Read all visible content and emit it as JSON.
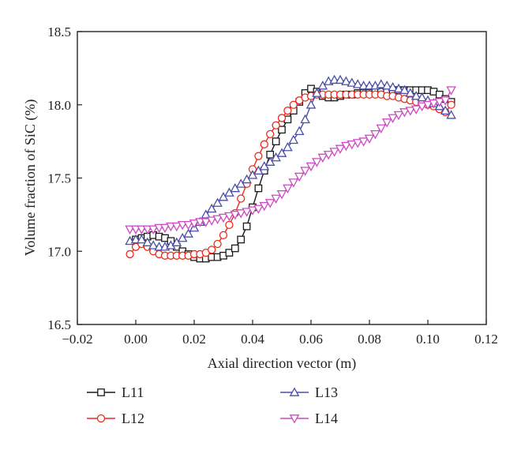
{
  "chart_data": {
    "type": "line",
    "title": "",
    "xlabel": "Axial direction vector (m)",
    "ylabel": "Volume fraction of SiC (%)",
    "xlim": [
      -0.02,
      0.12
    ],
    "ylim": [
      16.5,
      18.5
    ],
    "xticks": [
      "−0.02",
      "0.00",
      "0.02",
      "0.04",
      "0.06",
      "0.08",
      "0.10",
      "0.12"
    ],
    "yticks": [
      "16.5",
      "17.0",
      "17.5",
      "18.0",
      "18.5"
    ],
    "grid": false,
    "legend_position": "bottom",
    "series": [
      {
        "name": "L11",
        "color": "#1a1a1a",
        "marker": "square",
        "x": [
          0.0,
          0.002,
          0.004,
          0.006,
          0.008,
          0.01,
          0.012,
          0.014,
          0.016,
          0.018,
          0.02,
          0.022,
          0.024,
          0.026,
          0.028,
          0.03,
          0.032,
          0.034,
          0.036,
          0.038,
          0.04,
          0.042,
          0.044,
          0.046,
          0.048,
          0.05,
          0.052,
          0.054,
          0.056,
          0.058,
          0.06,
          0.062,
          0.064,
          0.066,
          0.068,
          0.07,
          0.072,
          0.074,
          0.076,
          0.078,
          0.08,
          0.082,
          0.084,
          0.086,
          0.088,
          0.09,
          0.092,
          0.094,
          0.096,
          0.098,
          0.1,
          0.102,
          0.104,
          0.106,
          0.108
        ],
        "values": [
          17.08,
          17.09,
          17.1,
          17.11,
          17.1,
          17.09,
          17.07,
          17.03,
          17.0,
          16.98,
          16.96,
          16.95,
          16.95,
          16.96,
          16.96,
          16.97,
          16.99,
          17.02,
          17.08,
          17.17,
          17.3,
          17.43,
          17.55,
          17.66,
          17.75,
          17.83,
          17.9,
          17.96,
          18.02,
          18.08,
          18.11,
          18.09,
          18.06,
          18.05,
          18.05,
          18.06,
          18.07,
          18.07,
          18.08,
          18.08,
          18.08,
          18.09,
          18.09,
          18.09,
          18.1,
          18.1,
          18.1,
          18.1,
          18.1,
          18.1,
          18.1,
          18.09,
          18.07,
          18.04,
          18.02
        ]
      },
      {
        "name": "L12",
        "color": "#ee2a1c",
        "marker": "circle",
        "x": [
          -0.002,
          0.0,
          0.002,
          0.004,
          0.006,
          0.008,
          0.01,
          0.012,
          0.014,
          0.016,
          0.018,
          0.02,
          0.022,
          0.024,
          0.026,
          0.028,
          0.03,
          0.032,
          0.034,
          0.036,
          0.038,
          0.04,
          0.042,
          0.044,
          0.046,
          0.048,
          0.05,
          0.052,
          0.054,
          0.056,
          0.058,
          0.06,
          0.062,
          0.064,
          0.066,
          0.068,
          0.07,
          0.072,
          0.074,
          0.076,
          0.078,
          0.08,
          0.082,
          0.084,
          0.086,
          0.088,
          0.09,
          0.092,
          0.094,
          0.096,
          0.098,
          0.1,
          0.102,
          0.104,
          0.106,
          0.108
        ],
        "values": [
          16.98,
          17.03,
          17.05,
          17.03,
          17.0,
          16.98,
          16.97,
          16.97,
          16.97,
          16.97,
          16.97,
          16.98,
          16.98,
          16.99,
          17.01,
          17.05,
          17.11,
          17.18,
          17.26,
          17.36,
          17.46,
          17.56,
          17.65,
          17.73,
          17.8,
          17.86,
          17.91,
          17.96,
          18.0,
          18.03,
          18.05,
          18.06,
          18.07,
          18.07,
          18.07,
          18.07,
          18.07,
          18.07,
          18.07,
          18.07,
          18.07,
          18.07,
          18.07,
          18.07,
          18.06,
          18.06,
          18.05,
          18.04,
          18.03,
          18.02,
          18.01,
          18.0,
          17.99,
          17.97,
          17.95,
          18.0
        ]
      },
      {
        "name": "L13",
        "color": "#4a4ea8",
        "marker": "triangle-up",
        "x": [
          -0.002,
          0.0,
          0.002,
          0.004,
          0.006,
          0.008,
          0.01,
          0.012,
          0.014,
          0.016,
          0.018,
          0.02,
          0.022,
          0.024,
          0.026,
          0.028,
          0.03,
          0.032,
          0.034,
          0.036,
          0.038,
          0.04,
          0.042,
          0.044,
          0.046,
          0.048,
          0.05,
          0.052,
          0.054,
          0.056,
          0.058,
          0.06,
          0.062,
          0.064,
          0.066,
          0.068,
          0.07,
          0.072,
          0.074,
          0.076,
          0.078,
          0.08,
          0.082,
          0.084,
          0.086,
          0.088,
          0.09,
          0.092,
          0.094,
          0.096,
          0.098,
          0.1,
          0.102,
          0.104,
          0.106,
          0.108
        ],
        "values": [
          17.07,
          17.08,
          17.08,
          17.06,
          17.04,
          17.03,
          17.03,
          17.04,
          17.06,
          17.09,
          17.12,
          17.16,
          17.2,
          17.25,
          17.29,
          17.33,
          17.37,
          17.4,
          17.43,
          17.46,
          17.49,
          17.52,
          17.55,
          17.58,
          17.61,
          17.64,
          17.67,
          17.71,
          17.76,
          17.82,
          17.9,
          18.0,
          18.08,
          18.13,
          18.16,
          18.17,
          18.17,
          18.16,
          18.15,
          18.14,
          18.13,
          18.13,
          18.13,
          18.14,
          18.13,
          18.12,
          18.11,
          18.1,
          18.08,
          18.06,
          18.05,
          18.03,
          18.01,
          17.99,
          17.96,
          17.93
        ]
      },
      {
        "name": "L14",
        "color": "#cc4bc2",
        "marker": "triangle-down",
        "x": [
          -0.002,
          0.0,
          0.002,
          0.004,
          0.006,
          0.008,
          0.01,
          0.012,
          0.014,
          0.016,
          0.018,
          0.02,
          0.022,
          0.024,
          0.026,
          0.028,
          0.03,
          0.032,
          0.034,
          0.036,
          0.038,
          0.04,
          0.042,
          0.044,
          0.046,
          0.048,
          0.05,
          0.052,
          0.054,
          0.056,
          0.058,
          0.06,
          0.062,
          0.064,
          0.066,
          0.068,
          0.07,
          0.072,
          0.074,
          0.076,
          0.078,
          0.08,
          0.082,
          0.084,
          0.086,
          0.088,
          0.09,
          0.092,
          0.094,
          0.096,
          0.098,
          0.1,
          0.102,
          0.104,
          0.106,
          0.108
        ],
        "values": [
          17.15,
          17.15,
          17.15,
          17.15,
          17.15,
          17.16,
          17.16,
          17.17,
          17.17,
          17.18,
          17.18,
          17.19,
          17.2,
          17.2,
          17.21,
          17.22,
          17.23,
          17.24,
          17.25,
          17.26,
          17.27,
          17.28,
          17.29,
          17.31,
          17.33,
          17.36,
          17.39,
          17.43,
          17.47,
          17.51,
          17.55,
          17.58,
          17.61,
          17.64,
          17.66,
          17.68,
          17.7,
          17.72,
          17.73,
          17.74,
          17.75,
          17.77,
          17.8,
          17.84,
          17.88,
          17.91,
          17.93,
          17.95,
          17.96,
          17.97,
          17.99,
          18.0,
          18.01,
          18.02,
          18.03,
          18.1
        ]
      }
    ]
  }
}
